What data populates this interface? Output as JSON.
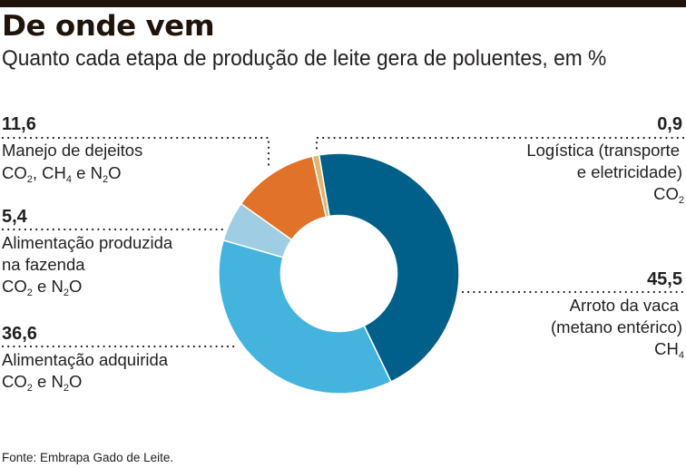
{
  "header": {
    "title": "De onde vem",
    "subtitle": "Quanto cada etapa de produção de leite gera de poluentes, em %"
  },
  "chart_data": {
    "type": "pie",
    "variant": "donut",
    "title": "De onde vem",
    "subtitle": "Quanto cada etapa de produção de leite gera de poluentes, em %",
    "unit": "%",
    "slices": [
      {
        "key": "arroto",
        "value": 45.5,
        "value_label": "45,5",
        "label_lines": [
          "Arroto da vaca",
          "(metano entérico)"
        ],
        "gases": "CH4",
        "color": "#00608a"
      },
      {
        "key": "adquirida",
        "value": 36.6,
        "value_label": "36,6",
        "label_lines": [
          "Alimentação adquirida"
        ],
        "gases": "CO2 e N2O",
        "color": "#44b3de"
      },
      {
        "key": "produzida",
        "value": 5.4,
        "value_label": "5,4",
        "label_lines": [
          "Alimentação produzida",
          "na fazenda"
        ],
        "gases": "CO2 e N2O",
        "color": "#9ecde4"
      },
      {
        "key": "dejeitos",
        "value": 11.6,
        "value_label": "11,6",
        "label_lines": [
          "Manejo de dejeitos"
        ],
        "gases": "CO2, CH4 e N2O",
        "color": "#e0722a"
      },
      {
        "key": "logistica",
        "value": 0.9,
        "value_label": "0,9",
        "label_lines": [
          "Logística (transporte",
          "e eletricidade)"
        ],
        "gases": "CO2",
        "color": "#e3b56f"
      }
    ],
    "legend": "callouts"
  },
  "source": "Fonte: Embrapa Gado de Leite."
}
